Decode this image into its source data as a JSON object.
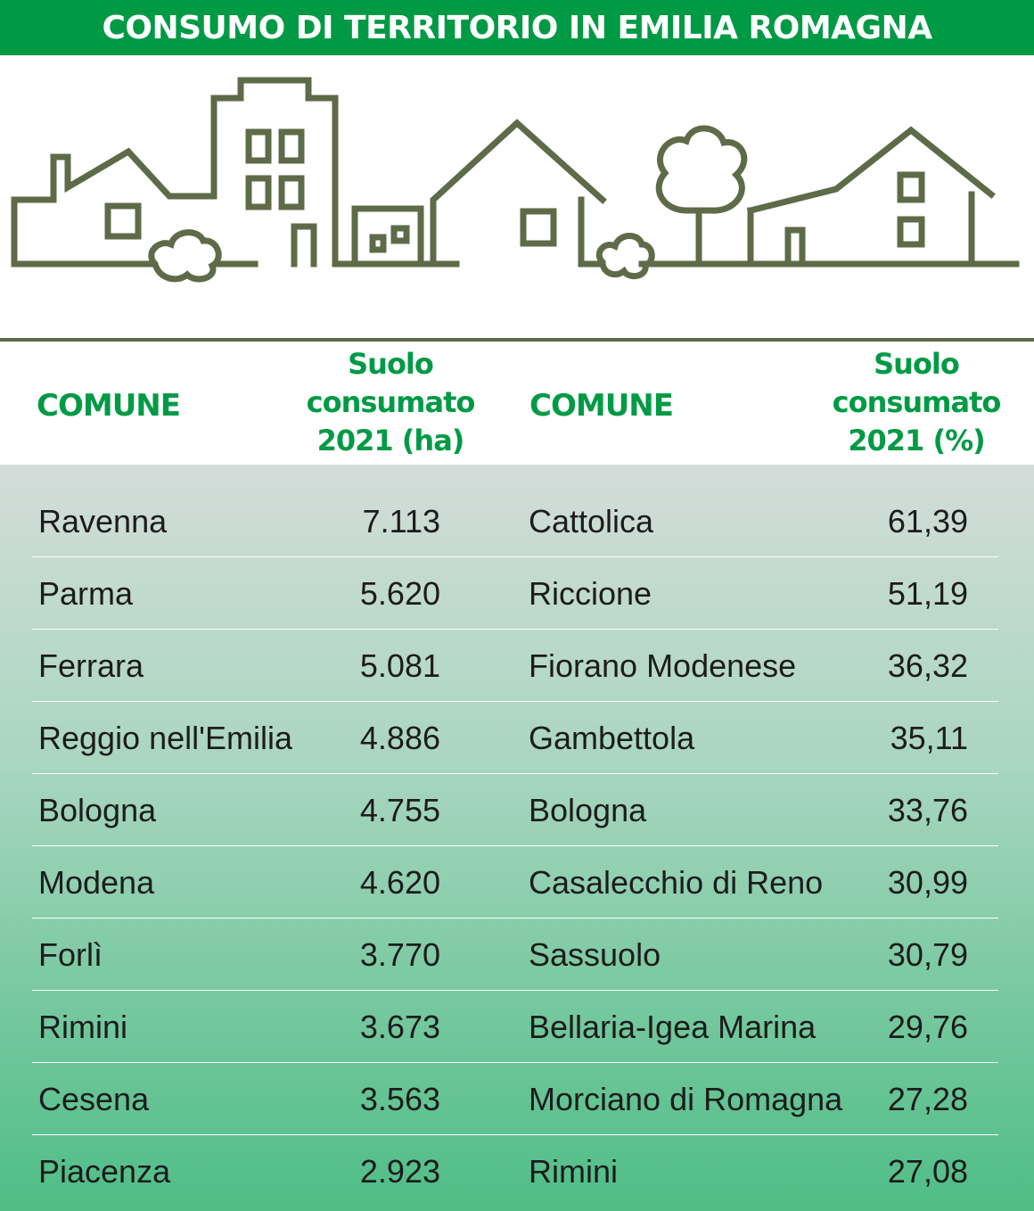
{
  "title": "CONSUMO DI TERRITORIO IN EMILIA ROMAGNA",
  "colors": {
    "brand_green": "#009a45",
    "outline_olive": "#5f6a48",
    "text_dark": "#1c1c1c"
  },
  "illustration": {
    "icon": "city-skyline-icon"
  },
  "chart_data": {
    "type": "table",
    "columns": [
      {
        "header": "COMUNE"
      },
      {
        "header_lines": [
          "Suolo",
          "consumato",
          "2021 (ha)"
        ]
      },
      {
        "header": "COMUNE"
      },
      {
        "header_lines": [
          "Suolo",
          "consumato",
          "2021 (%)"
        ]
      }
    ],
    "rows": [
      {
        "comune_ha": "Ravenna",
        "ha": "7.113",
        "comune_pct": "Cattolica",
        "pct": "61,39"
      },
      {
        "comune_ha": "Parma",
        "ha": "5.620",
        "comune_pct": "Riccione",
        "pct": "51,19"
      },
      {
        "comune_ha": "Ferrara",
        "ha": "5.081",
        "comune_pct": "Fiorano Modenese",
        "pct": "36,32"
      },
      {
        "comune_ha": "Reggio nell'Emilia",
        "ha": "4.886",
        "comune_pct": "Gambettola",
        "pct": "35,11"
      },
      {
        "comune_ha": "Bologna",
        "ha": "4.755",
        "comune_pct": "Bologna",
        "pct": "33,76"
      },
      {
        "comune_ha": "Modena",
        "ha": "4.620",
        "comune_pct": "Casalecchio di Reno",
        "pct": "30,99"
      },
      {
        "comune_ha": "Forlì",
        "ha": "3.770",
        "comune_pct": "Sassuolo",
        "pct": "30,79"
      },
      {
        "comune_ha": "Rimini",
        "ha": "3.673",
        "comune_pct": "Bellaria-Igea Marina",
        "pct": "29,76"
      },
      {
        "comune_ha": "Cesena",
        "ha": "3.563",
        "comune_pct": "Morciano di Romagna",
        "pct": "27,28"
      },
      {
        "comune_ha": "Piacenza",
        "ha": "2.923",
        "comune_pct": "Rimini",
        "pct": "27,08"
      }
    ]
  }
}
